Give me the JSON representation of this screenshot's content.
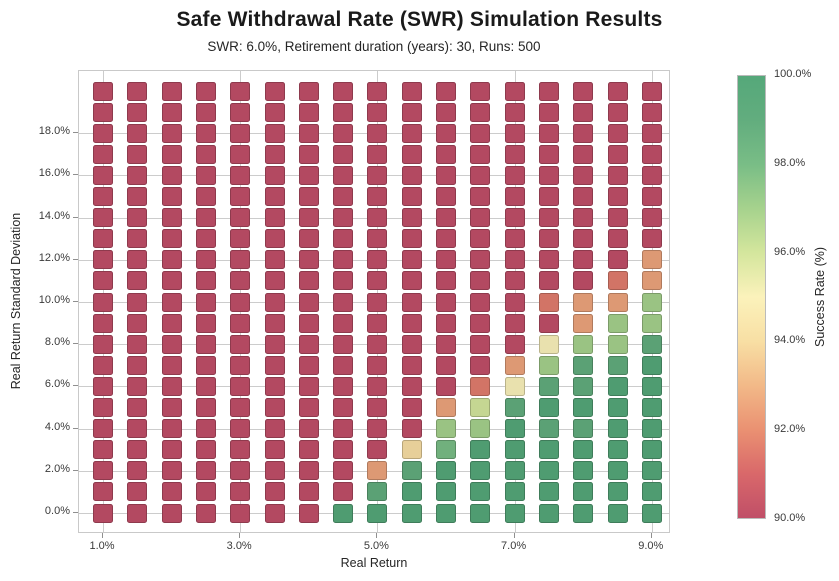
{
  "header": {
    "title": "Safe Withdrawal Rate (SWR) Simulation Results",
    "subtitle": "SWR: 6.0%, Retirement duration (years): 30, Runs: 500"
  },
  "chart_data": {
    "type": "heatmap",
    "title": "Safe Withdrawal Rate (SWR) Simulation Results",
    "subtitle": "SWR: 6.0%, Retirement duration (years): 30, Runs: 500",
    "xlabel": "Real Return",
    "ylabel": "Real Return Standard Deviation",
    "x_values_pct": [
      1.0,
      1.5,
      2.0,
      2.5,
      3.0,
      3.5,
      4.0,
      4.5,
      5.0,
      5.5,
      6.0,
      6.5,
      7.0,
      7.5,
      8.0,
      8.5,
      9.0
    ],
    "y_values_pct": [
      0,
      1,
      2,
      3,
      4,
      5,
      6,
      7,
      8,
      9,
      10,
      11,
      12,
      13,
      14,
      15,
      16,
      17,
      18,
      19,
      20
    ],
    "x_tick_labels": [
      "1.0%",
      "3.0%",
      "5.0%",
      "7.0%",
      "9.0%"
    ],
    "x_tick_values": [
      1.0,
      3.0,
      5.0,
      7.0,
      9.0
    ],
    "y_tick_labels": [
      "0.0%",
      "2.0%",
      "4.0%",
      "6.0%",
      "8.0%",
      "10.0%",
      "12.0%",
      "14.0%",
      "16.0%",
      "18.0%"
    ],
    "y_tick_values": [
      0,
      2,
      4,
      6,
      8,
      10,
      12,
      14,
      16,
      18
    ],
    "grid": true,
    "marker": "square",
    "success_rate_pct_rows_by_std_dev": [
      [
        90,
        90,
        90,
        90,
        90,
        90,
        90,
        100,
        100,
        100,
        100,
        100,
        100,
        100,
        100,
        100,
        100
      ],
      [
        90,
        90,
        90,
        90,
        90,
        90,
        90,
        90,
        99,
        100,
        100,
        100,
        100,
        100,
        100,
        100,
        100
      ],
      [
        90,
        90,
        90,
        90,
        90,
        90,
        90,
        90,
        92.5,
        99,
        100,
        100,
        100,
        100,
        100,
        100,
        100
      ],
      [
        90,
        90,
        90,
        90,
        90,
        90,
        90,
        90,
        90,
        94,
        98,
        100,
        100,
        100,
        100,
        100,
        100
      ],
      [
        90,
        90,
        90,
        90,
        90,
        90,
        90,
        90,
        90,
        90,
        97,
        97,
        100,
        99,
        99,
        100,
        100
      ],
      [
        90,
        90,
        90,
        90,
        90,
        90,
        90,
        90,
        90,
        90,
        92.5,
        96,
        99,
        100,
        100,
        100,
        100
      ],
      [
        90,
        90,
        90,
        90,
        90,
        90,
        90,
        90,
        90,
        90,
        90,
        91.5,
        95,
        99,
        99,
        100,
        100
      ],
      [
        90,
        90,
        90,
        90,
        90,
        90,
        90,
        90,
        90,
        90,
        90,
        90,
        92.5,
        97,
        99,
        99,
        100
      ],
      [
        90,
        90,
        90,
        90,
        90,
        90,
        90,
        90,
        90,
        90,
        90,
        90,
        90,
        95,
        97,
        97,
        99
      ],
      [
        90,
        90,
        90,
        90,
        90,
        90,
        90,
        90,
        90,
        90,
        90,
        90,
        90,
        90,
        92.5,
        97,
        97
      ],
      [
        90,
        90,
        90,
        90,
        90,
        90,
        90,
        90,
        90,
        90,
        90,
        90,
        90,
        91.5,
        92.5,
        92.5,
        97
      ],
      [
        90,
        90,
        90,
        90,
        90,
        90,
        90,
        90,
        90,
        90,
        90,
        90,
        90,
        90,
        90,
        91.5,
        92.5
      ],
      [
        90,
        90,
        90,
        90,
        90,
        90,
        90,
        90,
        90,
        90,
        90,
        90,
        90,
        90,
        90,
        90,
        92.5
      ],
      [
        90,
        90,
        90,
        90,
        90,
        90,
        90,
        90,
        90,
        90,
        90,
        90,
        90,
        90,
        90,
        90,
        90
      ],
      [
        90,
        90,
        90,
        90,
        90,
        90,
        90,
        90,
        90,
        90,
        90,
        90,
        90,
        90,
        90,
        90,
        90
      ],
      [
        90,
        90,
        90,
        90,
        90,
        90,
        90,
        90,
        90,
        90,
        90,
        90,
        90,
        90,
        90,
        90,
        90
      ],
      [
        90,
        90,
        90,
        90,
        90,
        90,
        90,
        90,
        90,
        90,
        90,
        90,
        90,
        90,
        90,
        90,
        90
      ],
      [
        90,
        90,
        90,
        90,
        90,
        90,
        90,
        90,
        90,
        90,
        90,
        90,
        90,
        90,
        90,
        90,
        90
      ],
      [
        90,
        90,
        90,
        90,
        90,
        90,
        90,
        90,
        90,
        90,
        90,
        90,
        90,
        90,
        90,
        90,
        90
      ],
      [
        90,
        90,
        90,
        90,
        90,
        90,
        90,
        90,
        90,
        90,
        90,
        90,
        90,
        90,
        90,
        90,
        90
      ],
      [
        90,
        90,
        90,
        90,
        90,
        90,
        90,
        90,
        90,
        90,
        90,
        90,
        90,
        90,
        90,
        90,
        90
      ]
    ],
    "colorbar": {
      "label": "Success Rate (%)",
      "min_pct": 90,
      "max_pct": 100,
      "tick_labels": [
        "90.0%",
        "92.0%",
        "94.0%",
        "96.0%",
        "98.0%",
        "100.0%"
      ],
      "tick_values": [
        90,
        92,
        94,
        96,
        98,
        100
      ]
    },
    "palette_stops": [
      {
        "t": 0.0,
        "color": "#c04f68"
      },
      {
        "t": 0.1,
        "color": "#d9686a"
      },
      {
        "t": 0.2,
        "color": "#ea9172"
      },
      {
        "t": 0.3,
        "color": "#f2b988"
      },
      {
        "t": 0.4,
        "color": "#f8dfa4"
      },
      {
        "t": 0.5,
        "color": "#fbf2bb"
      },
      {
        "t": 0.6,
        "color": "#d4e69d"
      },
      {
        "t": 0.7,
        "color": "#a6d28d"
      },
      {
        "t": 0.8,
        "color": "#79bd86"
      },
      {
        "t": 0.9,
        "color": "#62ad7e"
      },
      {
        "t": 1.0,
        "color": "#55a87a"
      }
    ],
    "colors": {
      "grid": "#cccccc",
      "spine": "#c9c9c9",
      "text": "#262626",
      "low_end": "#c04f68",
      "high_end": "#55a87a"
    }
  }
}
